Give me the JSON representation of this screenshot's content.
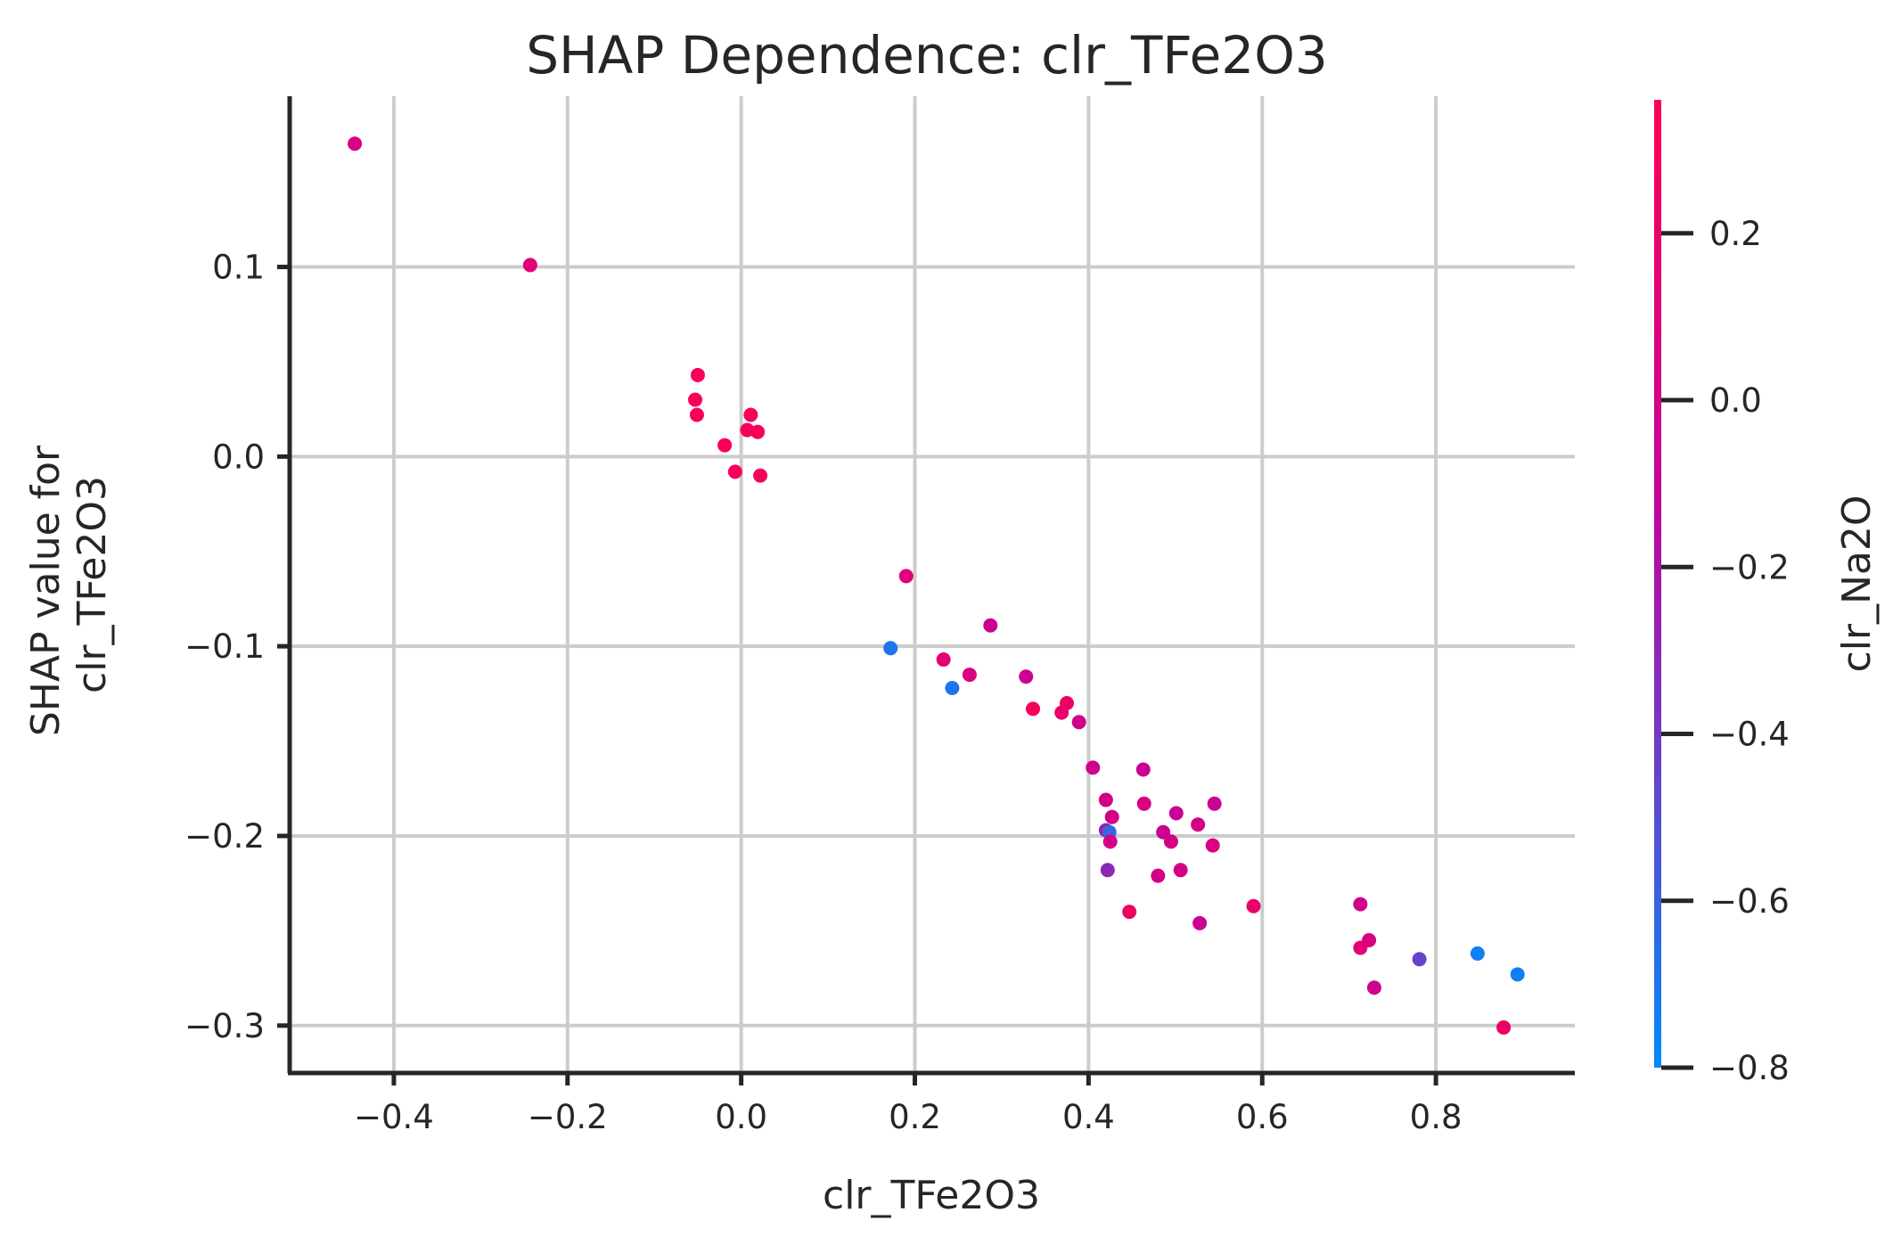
{
  "chart_data": {
    "type": "scatter",
    "title": "SHAP Dependence: clr_TFe2O3",
    "xlabel": "clr_TFe2O3",
    "ylabel_lines": [
      "SHAP value for",
      "clr_TFe2O3"
    ],
    "xlim": [
      -0.52,
      0.96
    ],
    "ylim": [
      -0.325,
      0.19
    ],
    "xticks": [
      -0.4,
      -0.2,
      0.0,
      0.2,
      0.4,
      0.6,
      0.8
    ],
    "xtick_labels": [
      "−0.4",
      "−0.2",
      "0.0",
      "0.2",
      "0.4",
      "0.6",
      "0.8"
    ],
    "yticks": [
      -0.3,
      -0.2,
      -0.1,
      0.0,
      0.1
    ],
    "ytick_labels": [
      "−0.3",
      "−0.2",
      "−0.1",
      "0.0",
      "0.1"
    ],
    "grid": true,
    "colorbar": {
      "label": "clr_Na2O",
      "range": [
        -0.8,
        0.36
      ],
      "ticks": [
        -0.8,
        -0.6,
        -0.4,
        -0.2,
        0.0,
        0.2
      ],
      "tick_labels": [
        "−0.8",
        "−0.6",
        "−0.4",
        "−0.2",
        "0.0",
        "0.2"
      ],
      "color_low": "#008afb",
      "color_mid": "#c1029c",
      "color_high": "#ff0052"
    },
    "points": [
      {
        "x": -0.445,
        "y": 0.165,
        "c": 0.05
      },
      {
        "x": -0.243,
        "y": 0.101,
        "c": 0.13
      },
      {
        "x": -0.05,
        "y": 0.043,
        "c": 0.3
      },
      {
        "x": -0.053,
        "y": 0.03,
        "c": 0.3
      },
      {
        "x": -0.051,
        "y": 0.022,
        "c": 0.3
      },
      {
        "x": 0.011,
        "y": 0.022,
        "c": 0.3
      },
      {
        "x": 0.007,
        "y": 0.014,
        "c": 0.3
      },
      {
        "x": 0.019,
        "y": 0.013,
        "c": 0.3
      },
      {
        "x": -0.019,
        "y": 0.006,
        "c": 0.3
      },
      {
        "x": -0.007,
        "y": -0.008,
        "c": 0.3
      },
      {
        "x": 0.022,
        "y": -0.01,
        "c": 0.3
      },
      {
        "x": 0.19,
        "y": -0.063,
        "c": 0.12
      },
      {
        "x": 0.172,
        "y": -0.101,
        "c": -0.7
      },
      {
        "x": 0.287,
        "y": -0.089,
        "c": -0.06
      },
      {
        "x": 0.233,
        "y": -0.107,
        "c": 0.15
      },
      {
        "x": 0.263,
        "y": -0.115,
        "c": 0.07
      },
      {
        "x": 0.243,
        "y": -0.122,
        "c": -0.7
      },
      {
        "x": 0.328,
        "y": -0.116,
        "c": -0.04
      },
      {
        "x": 0.336,
        "y": -0.133,
        "c": 0.3
      },
      {
        "x": 0.375,
        "y": -0.13,
        "c": 0.22
      },
      {
        "x": 0.369,
        "y": -0.135,
        "c": 0.18
      },
      {
        "x": 0.389,
        "y": -0.14,
        "c": -0.02
      },
      {
        "x": 0.405,
        "y": -0.164,
        "c": -0.02
      },
      {
        "x": 0.463,
        "y": -0.165,
        "c": -0.06
      },
      {
        "x": 0.42,
        "y": -0.181,
        "c": 0.02
      },
      {
        "x": 0.464,
        "y": -0.183,
        "c": 0.05
      },
      {
        "x": 0.545,
        "y": -0.183,
        "c": -0.08
      },
      {
        "x": 0.427,
        "y": -0.19,
        "c": 0.02
      },
      {
        "x": 0.501,
        "y": -0.188,
        "c": -0.08
      },
      {
        "x": 0.526,
        "y": -0.194,
        "c": 0.02
      },
      {
        "x": 0.42,
        "y": -0.197,
        "c": -0.26
      },
      {
        "x": 0.424,
        "y": -0.198,
        "c": -0.62
      },
      {
        "x": 0.486,
        "y": -0.198,
        "c": -0.06
      },
      {
        "x": 0.425,
        "y": -0.203,
        "c": 0.02
      },
      {
        "x": 0.495,
        "y": -0.203,
        "c": 0.02
      },
      {
        "x": 0.543,
        "y": -0.205,
        "c": 0.05
      },
      {
        "x": 0.506,
        "y": -0.218,
        "c": 0.02
      },
      {
        "x": 0.422,
        "y": -0.218,
        "c": -0.32
      },
      {
        "x": 0.48,
        "y": -0.221,
        "c": 0.02
      },
      {
        "x": 0.59,
        "y": -0.237,
        "c": 0.18
      },
      {
        "x": 0.447,
        "y": -0.24,
        "c": 0.22
      },
      {
        "x": 0.528,
        "y": -0.246,
        "c": -0.06
      },
      {
        "x": 0.713,
        "y": -0.236,
        "c": -0.02
      },
      {
        "x": 0.723,
        "y": -0.255,
        "c": 0.05
      },
      {
        "x": 0.713,
        "y": -0.259,
        "c": 0.13
      },
      {
        "x": 0.781,
        "y": -0.265,
        "c": -0.45
      },
      {
        "x": 0.848,
        "y": -0.262,
        "c": -0.74
      },
      {
        "x": 0.894,
        "y": -0.273,
        "c": -0.74
      },
      {
        "x": 0.729,
        "y": -0.28,
        "c": -0.02
      },
      {
        "x": 0.878,
        "y": -0.301,
        "c": 0.22
      }
    ]
  }
}
